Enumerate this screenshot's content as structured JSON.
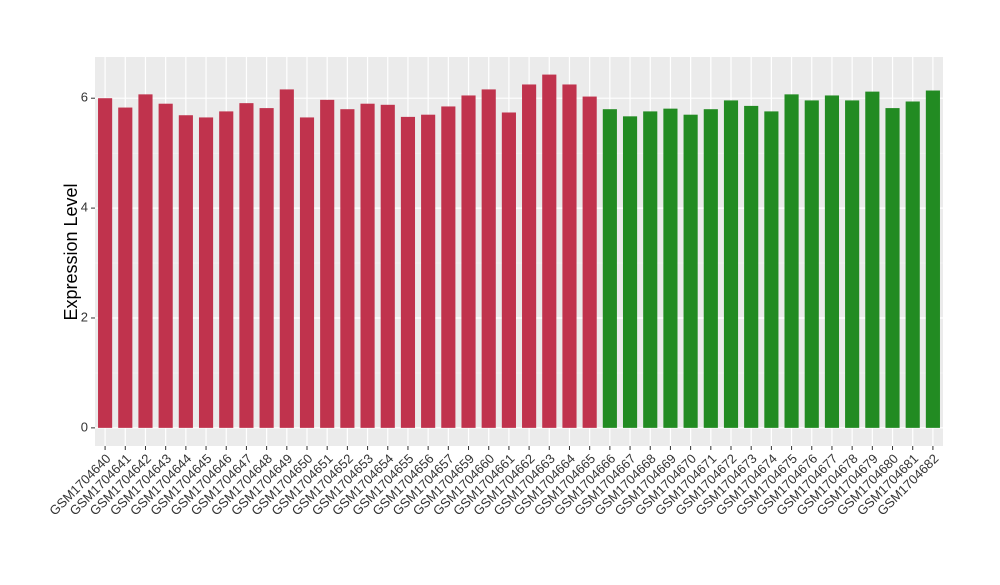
{
  "chart_data": {
    "type": "bar",
    "y_label": "Expression Level",
    "categories": [
      "GSM1704640",
      "GSM1704641",
      "GSM1704642",
      "GSM1704643",
      "GSM1704644",
      "GSM1704645",
      "GSM1704646",
      "GSM1704647",
      "GSM1704648",
      "GSM1704649",
      "GSM1704650",
      "GSM1704651",
      "GSM1704652",
      "GSM1704653",
      "GSM1704654",
      "GSM1704655",
      "GSM1704656",
      "GSM1704657",
      "GSM1704659",
      "GSM1704660",
      "GSM1704661",
      "GSM1704662",
      "GSM1704663",
      "GSM1704664",
      "GSM1704665",
      "GSM1704666",
      "GSM1704667",
      "GSM1704668",
      "GSM1704669",
      "GSM1704670",
      "GSM1704671",
      "GSM1704672",
      "GSM1704673",
      "GSM1704674",
      "GSM1704675",
      "GSM1704676",
      "GSM1704677",
      "GSM1704678",
      "GSM1704679",
      "GSM1704680",
      "GSM1704681",
      "GSM1704682"
    ],
    "values": [
      6.0,
      5.83,
      6.07,
      5.9,
      5.69,
      5.65,
      5.76,
      5.91,
      5.82,
      6.16,
      5.65,
      5.97,
      5.8,
      5.9,
      5.88,
      5.66,
      5.7,
      5.85,
      6.05,
      6.16,
      5.74,
      6.25,
      6.43,
      6.25,
      6.03,
      5.8,
      5.67,
      5.76,
      5.81,
      5.7,
      5.8,
      5.96,
      5.86,
      5.76,
      6.07,
      5.96,
      6.05,
      5.96,
      6.12,
      5.82,
      5.94,
      6.14
    ],
    "colors": [
      "#c0334d",
      "#c0334d",
      "#c0334d",
      "#c0334d",
      "#c0334d",
      "#c0334d",
      "#c0334d",
      "#c0334d",
      "#c0334d",
      "#c0334d",
      "#c0334d",
      "#c0334d",
      "#c0334d",
      "#c0334d",
      "#c0334d",
      "#c0334d",
      "#c0334d",
      "#c0334d",
      "#c0334d",
      "#c0334d",
      "#c0334d",
      "#c0334d",
      "#c0334d",
      "#c0334d",
      "#c0334d",
      "#228b22",
      "#228b22",
      "#228b22",
      "#228b22",
      "#228b22",
      "#228b22",
      "#228b22",
      "#228b22",
      "#228b22",
      "#228b22",
      "#228b22",
      "#228b22",
      "#228b22",
      "#228b22",
      "#228b22",
      "#228b22",
      "#228b22"
    ],
    "ylim": [
      -0.33,
      6.75
    ],
    "yticks": [
      0,
      2,
      4,
      6
    ],
    "grid": true
  }
}
